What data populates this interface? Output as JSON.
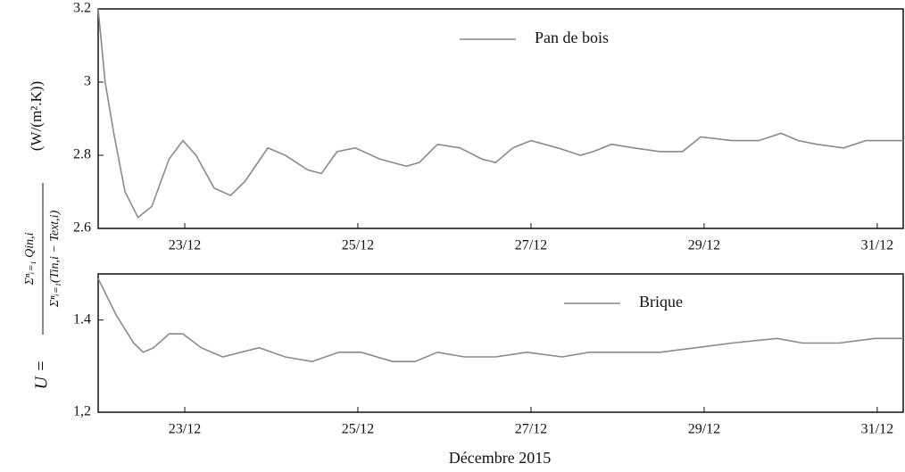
{
  "y_label": {
    "lhs": "U =",
    "numerator": "Σⁿᵢ₌₁ Qin,i",
    "denominator": "Σⁿᵢ₌₁(Tin,i − Text,i)",
    "unit": "(W/(m².K))"
  },
  "x_label": "Décembre 2015",
  "chart_data": [
    {
      "type": "line",
      "xlim": [
        22,
        31.3
      ],
      "xticks": [
        {
          "value": 23,
          "label": "23/12"
        },
        {
          "value": 25,
          "label": "25/12"
        },
        {
          "value": 27,
          "label": "27/12"
        },
        {
          "value": 29,
          "label": "29/12"
        },
        {
          "value": 31,
          "label": "31/12"
        }
      ],
      "ylim": [
        2.6,
        3.2
      ],
      "yticks": [
        2.6,
        2.8,
        3,
        3.2
      ],
      "legend": "top",
      "series": [
        {
          "name": "Pan de bois",
          "color": "#8a8a8a",
          "x": [
            22.0,
            22.08,
            22.18,
            22.31,
            22.46,
            22.62,
            22.82,
            22.98,
            23.13,
            23.34,
            23.53,
            23.7,
            23.96,
            24.16,
            24.42,
            24.58,
            24.76,
            24.97,
            25.25,
            25.56,
            25.71,
            25.92,
            26.18,
            26.43,
            26.59,
            26.79,
            27.0,
            27.31,
            27.57,
            27.72,
            27.93,
            28.19,
            28.49,
            28.75,
            28.96,
            29.32,
            29.63,
            29.89,
            30.09,
            30.3,
            30.61,
            30.87,
            31.18,
            31.3
          ],
          "values": [
            3.2,
            3.0,
            2.86,
            2.7,
            2.63,
            2.66,
            2.79,
            2.84,
            2.8,
            2.71,
            2.69,
            2.73,
            2.82,
            2.8,
            2.76,
            2.75,
            2.81,
            2.82,
            2.79,
            2.77,
            2.78,
            2.83,
            2.82,
            2.79,
            2.78,
            2.82,
            2.84,
            2.82,
            2.8,
            2.81,
            2.83,
            2.82,
            2.81,
            2.81,
            2.85,
            2.84,
            2.84,
            2.86,
            2.84,
            2.83,
            2.82,
            2.84,
            2.84,
            2.84
          ]
        }
      ]
    },
    {
      "type": "line",
      "xlim": [
        22,
        31.3
      ],
      "xticks": [
        {
          "value": 23,
          "label": "23/12"
        },
        {
          "value": 25,
          "label": "25/12"
        },
        {
          "value": 27,
          "label": "27/12"
        },
        {
          "value": 29,
          "label": "29/12"
        },
        {
          "value": 31,
          "label": "31/12"
        }
      ],
      "ylim": [
        1.2,
        1.5
      ],
      "yticks": [
        {
          "value": 1.2,
          "label": "1,2"
        },
        1.4
      ],
      "legend": "top",
      "series": [
        {
          "name": "Brique",
          "color": "#8a8a8a",
          "x": [
            22.0,
            22.21,
            22.41,
            22.52,
            22.64,
            22.82,
            22.98,
            23.19,
            23.44,
            23.65,
            23.86,
            24.16,
            24.47,
            24.78,
            25.04,
            25.4,
            25.66,
            25.92,
            26.23,
            26.59,
            26.95,
            27.36,
            27.67,
            28.08,
            28.49,
            28.91,
            29.32,
            29.84,
            30.14,
            30.56,
            30.97,
            31.3
          ],
          "values": [
            1.49,
            1.41,
            1.35,
            1.33,
            1.34,
            1.37,
            1.37,
            1.34,
            1.32,
            1.33,
            1.34,
            1.32,
            1.31,
            1.33,
            1.33,
            1.31,
            1.31,
            1.33,
            1.32,
            1.32,
            1.33,
            1.32,
            1.33,
            1.33,
            1.33,
            1.34,
            1.35,
            1.36,
            1.35,
            1.35,
            1.36,
            1.36
          ]
        }
      ]
    }
  ]
}
